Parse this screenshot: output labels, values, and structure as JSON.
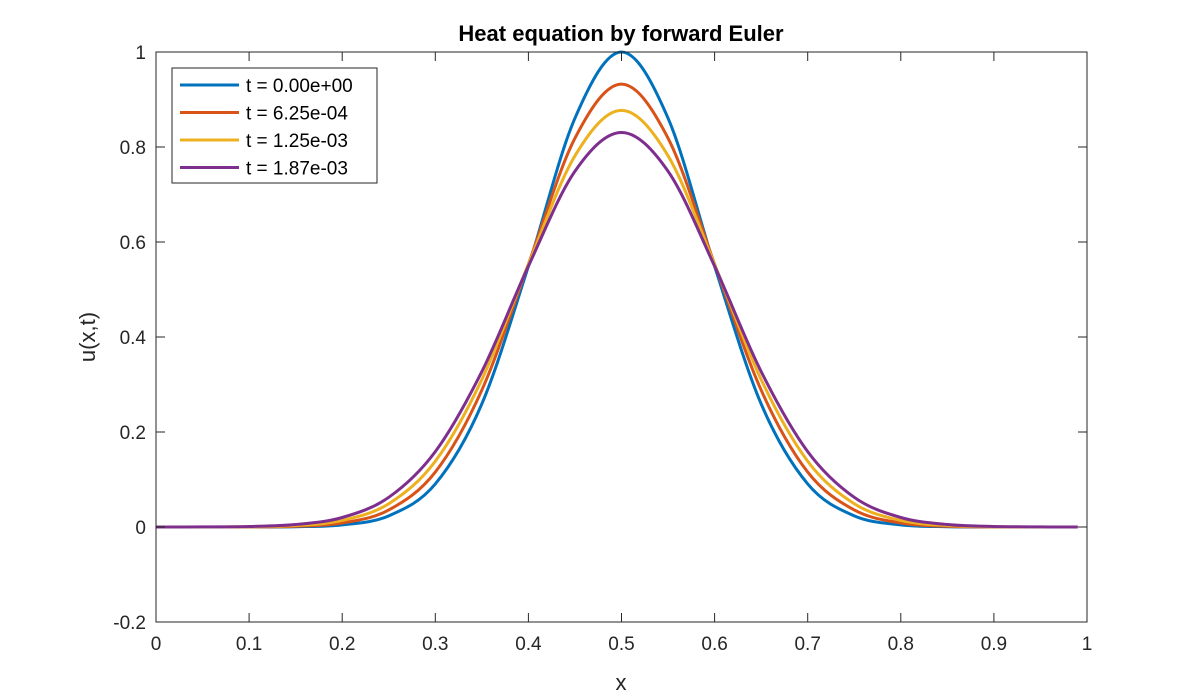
{
  "chart_data": {
    "type": "line",
    "title": "Heat equation by forward Euler",
    "xlabel": "x",
    "ylabel": "u(x,t)",
    "xlim": [
      0,
      1
    ],
    "ylim": [
      -0.2,
      1
    ],
    "xticks": [
      0,
      0.1,
      0.2,
      0.3,
      0.4,
      0.5,
      0.6,
      0.7,
      0.8,
      0.9,
      1
    ],
    "xtick_labels": [
      "0",
      "0.1",
      "0.2",
      "0.3",
      "0.4",
      "0.5",
      "0.6",
      "0.7",
      "0.8",
      "0.9",
      "1"
    ],
    "yticks": [
      -0.2,
      0,
      0.2,
      0.4,
      0.6,
      0.8,
      1
    ],
    "ytick_labels": [
      "-0.2",
      "0",
      "0.2",
      "0.4",
      "0.6",
      "0.8",
      "1"
    ],
    "grid": false,
    "legend_placement": "top-left",
    "x": [
      0,
      0.05,
      0.1,
      0.15,
      0.2,
      0.25,
      0.3,
      0.35,
      0.4,
      0.45,
      0.5,
      0.55,
      0.6,
      0.65,
      0.7,
      0.75,
      0.8,
      0.85,
      0.9,
      0.95,
      0.99
    ],
    "series": [
      {
        "name": "t = 0.00e+00",
        "color": "#0072BD",
        "values": [
          0,
          0,
          0.0001,
          0.0006,
          0.0045,
          0.0235,
          0.0907,
          0.2592,
          0.5488,
          0.8607,
          1,
          0.8607,
          0.5488,
          0.2592,
          0.0907,
          0.0235,
          0.0045,
          0.0006,
          0.0001,
          0,
          0
        ]
      },
      {
        "name": "t = 6.25e-04",
        "color": "#D95319",
        "values": [
          0,
          0,
          0.0002,
          0.0016,
          0.0085,
          0.0358,
          0.1157,
          0.2883,
          0.5534,
          0.8185,
          0.9325,
          0.8185,
          0.5534,
          0.2883,
          0.1157,
          0.0358,
          0.0085,
          0.0016,
          0.0002,
          0,
          0
        ]
      },
      {
        "name": "t = 1.25e-03",
        "color": "#EDB120",
        "values": [
          0,
          0.0001,
          0.0005,
          0.0031,
          0.0138,
          0.049,
          0.1385,
          0.3105,
          0.5528,
          0.7815,
          0.8771,
          0.7815,
          0.5528,
          0.3105,
          0.1385,
          0.049,
          0.0138,
          0.0031,
          0.0005,
          0.0001,
          0
        ]
      },
      {
        "name": "t = 1.87e-03",
        "color": "#7E2F8E",
        "values": [
          0,
          0.0002,
          0.0011,
          0.0052,
          0.02,
          0.0625,
          0.1587,
          0.3273,
          0.5491,
          0.7489,
          0.8305,
          0.7489,
          0.5491,
          0.3273,
          0.1587,
          0.0625,
          0.02,
          0.0052,
          0.0011,
          0.0002,
          0
        ]
      }
    ]
  }
}
